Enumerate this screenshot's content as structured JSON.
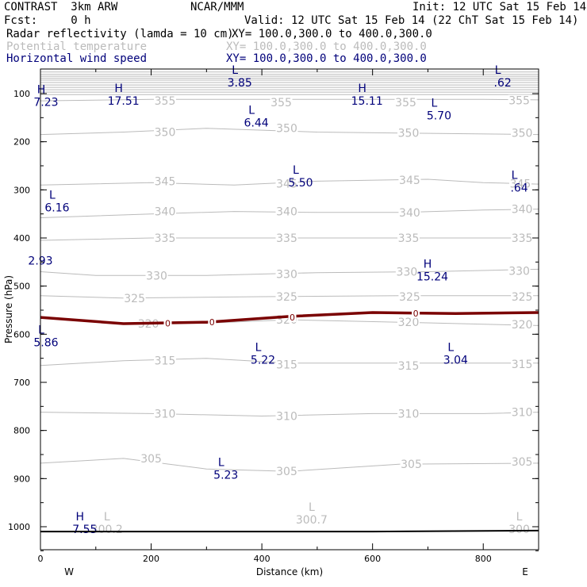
{
  "header": {
    "model": "CONTRAST  3km ARW",
    "center": "NCAR/MMM",
    "init": "Init: 12 UTC Sat 15 Feb 14",
    "fcst": "Fcst:     0 h",
    "valid": "Valid: 12 UTC Sat 15 Feb 14 (22 ChT Sat 15 Feb 14)",
    "fields": [
      {
        "name": "Radar reflectivity (lamda = 10 cm)",
        "xy": "XY= 100.0,300.0 to 400.0,300.0",
        "color": "#000000"
      },
      {
        "name": "Potential temperature",
        "xy": "XY= 100.0,300.0 to 400.0,300.0",
        "color": "#bbbbbb"
      },
      {
        "name": "Horizontal wind speed",
        "xy": "XY= 100.0,300.0 to 400.0,300.0",
        "color": "#00007a"
      }
    ]
  },
  "chart_data": {
    "type": "cross-section",
    "xlabel": "Distance (km)",
    "ylabel": "Pressure (hPa)",
    "xlim": [
      0,
      900
    ],
    "ylim": [
      1050,
      50
    ],
    "x_ticks": [
      0,
      200,
      400,
      600,
      800
    ],
    "y_ticks": [
      100,
      200,
      300,
      400,
      500,
      600,
      700,
      800,
      900,
      1000
    ],
    "x_ends": {
      "left": "W",
      "right": "E"
    },
    "theta_contours": [
      {
        "value": 355,
        "points": [
          [
            0,
            115
          ],
          [
            200,
            112
          ],
          [
            400,
            112
          ],
          [
            600,
            112
          ],
          [
            800,
            112
          ],
          [
            900,
            113
          ]
        ],
        "labels": [
          [
            225,
            115,
            "355"
          ],
          [
            435,
            118,
            "355"
          ],
          [
            660,
            118,
            "355"
          ],
          [
            865,
            114,
            "355"
          ]
        ]
      },
      {
        "value": 350,
        "points": [
          [
            0,
            185
          ],
          [
            150,
            180
          ],
          [
            300,
            172
          ],
          [
            500,
            180
          ],
          [
            650,
            182
          ],
          [
            900,
            185
          ]
        ],
        "labels": [
          [
            225,
            180,
            "350"
          ],
          [
            445,
            172,
            "350"
          ],
          [
            665,
            182,
            "350"
          ],
          [
            870,
            182,
            "350"
          ]
        ]
      },
      {
        "value": 345,
        "points": [
          [
            0,
            290
          ],
          [
            200,
            285
          ],
          [
            350,
            290
          ],
          [
            500,
            282
          ],
          [
            700,
            278
          ],
          [
            800,
            285
          ],
          [
            900,
            288
          ]
        ],
        "labels": [
          [
            225,
            282,
            "345"
          ],
          [
            445,
            287,
            "345"
          ],
          [
            667,
            280,
            "345"
          ],
          [
            867,
            287,
            "345"
          ]
        ]
      },
      {
        "value": 340,
        "points": [
          [
            0,
            358
          ],
          [
            200,
            350
          ],
          [
            350,
            345
          ],
          [
            500,
            347
          ],
          [
            650,
            347
          ],
          [
            800,
            342
          ],
          [
            900,
            340
          ]
        ],
        "labels": [
          [
            225,
            345,
            "340"
          ],
          [
            445,
            345,
            "340"
          ],
          [
            667,
            347,
            "340"
          ],
          [
            870,
            340,
            "340"
          ]
        ]
      },
      {
        "value": 335,
        "points": [
          [
            0,
            405
          ],
          [
            200,
            400
          ],
          [
            400,
            400
          ],
          [
            600,
            400
          ],
          [
            800,
            400
          ],
          [
            900,
            400
          ]
        ],
        "labels": [
          [
            225,
            400,
            "335"
          ],
          [
            445,
            400,
            "335"
          ],
          [
            665,
            400,
            "335"
          ],
          [
            870,
            400,
            "335"
          ]
        ]
      },
      {
        "value": 330,
        "points": [
          [
            0,
            470
          ],
          [
            100,
            478
          ],
          [
            300,
            478
          ],
          [
            500,
            472
          ],
          [
            700,
            470
          ],
          [
            900,
            465
          ]
        ],
        "labels": [
          [
            210,
            478,
            "330"
          ],
          [
            445,
            475,
            "330"
          ],
          [
            662,
            470,
            "330"
          ],
          [
            865,
            468,
            "330"
          ]
        ]
      },
      {
        "value": 325,
        "points": [
          [
            0,
            520
          ],
          [
            150,
            525
          ],
          [
            400,
            522
          ],
          [
            650,
            520
          ],
          [
            900,
            520
          ]
        ],
        "labels": [
          [
            170,
            525,
            "325"
          ],
          [
            445,
            522,
            "325"
          ],
          [
            667,
            522,
            "325"
          ],
          [
            870,
            522,
            "325"
          ]
        ]
      },
      {
        "value": 320,
        "points": [
          [
            0,
            565
          ],
          [
            150,
            578
          ],
          [
            300,
            577
          ],
          [
            450,
            570
          ],
          [
            650,
            575
          ],
          [
            900,
            582
          ]
        ],
        "labels": [
          [
            195,
            578,
            "320"
          ],
          [
            445,
            570,
            "320"
          ],
          [
            665,
            575,
            "320"
          ],
          [
            870,
            580,
            "320"
          ]
        ]
      },
      {
        "value": 315,
        "points": [
          [
            0,
            665
          ],
          [
            150,
            655
          ],
          [
            300,
            650
          ],
          [
            450,
            660
          ],
          [
            650,
            660
          ],
          [
            900,
            660
          ]
        ],
        "labels": [
          [
            225,
            655,
            "315"
          ],
          [
            445,
            663,
            "315"
          ],
          [
            665,
            665,
            "315"
          ],
          [
            870,
            662,
            "315"
          ]
        ]
      },
      {
        "value": 310,
        "points": [
          [
            0,
            762
          ],
          [
            200,
            765
          ],
          [
            400,
            770
          ],
          [
            600,
            765
          ],
          [
            800,
            765
          ],
          [
            900,
            762
          ]
        ],
        "labels": [
          [
            225,
            765,
            "310"
          ],
          [
            445,
            770,
            "310"
          ],
          [
            665,
            765,
            "310"
          ],
          [
            870,
            762,
            "310"
          ]
        ]
      },
      {
        "value": 305,
        "points": [
          [
            0,
            868
          ],
          [
            150,
            858
          ],
          [
            300,
            880
          ],
          [
            450,
            885
          ],
          [
            650,
            870
          ],
          [
            900,
            868
          ]
        ],
        "labels": [
          [
            200,
            858,
            "305"
          ],
          [
            445,
            885,
            "305"
          ],
          [
            670,
            870,
            "305"
          ],
          [
            870,
            865,
            "305"
          ]
        ]
      }
    ],
    "top_band_lines": [
      55,
      60,
      64,
      68,
      72,
      77,
      82,
      87,
      92,
      97,
      102
    ],
    "freezing_line": [
      [
        0,
        565
      ],
      [
        150,
        578
      ],
      [
        300,
        575
      ],
      [
        450,
        563
      ],
      [
        600,
        555
      ],
      [
        750,
        557
      ],
      [
        900,
        555
      ]
    ],
    "zero_markers": [
      [
        230,
        577
      ],
      [
        310,
        575
      ],
      [
        455,
        565
      ],
      [
        678,
        557
      ]
    ],
    "zero_label": "0",
    "wind_labels": [
      {
        "letter": "L",
        "value": "3.85",
        "x": 360,
        "p": 72
      },
      {
        "letter": "L",
        "value": ".62",
        "x": 835,
        "p": 72
      },
      {
        "letter": "H",
        "value": "7.23",
        "x": 10,
        "p": 112
      },
      {
        "letter": "H",
        "value": "17.51",
        "x": 150,
        "p": 110
      },
      {
        "letter": "H",
        "value": "15.11",
        "x": 590,
        "p": 110
      },
      {
        "letter": "L",
        "value": "5.70",
        "x": 720,
        "p": 140
      },
      {
        "letter": "L",
        "value": "6.44",
        "x": 390,
        "p": 155
      },
      {
        "letter": "L",
        "value": "5.50",
        "x": 470,
        "p": 280
      },
      {
        "letter": "L",
        "value": ".64",
        "x": 865,
        "p": 290
      },
      {
        "letter": "L",
        "value": "6.16",
        "x": 30,
        "p": 332
      },
      {
        "letter": "",
        "value": "2.93",
        "x": 0,
        "p": 442
      },
      {
        "letter": "H",
        "value": "15.24",
        "x": 708,
        "p": 475
      },
      {
        "letter": "L",
        "value": "5.86",
        "x": 10,
        "p": 612
      },
      {
        "letter": "L",
        "value": "5.22",
        "x": 402,
        "p": 648
      },
      {
        "letter": "L",
        "value": "3.04",
        "x": 750,
        "p": 648
      },
      {
        "letter": "L",
        "value": "5.23",
        "x": 335,
        "p": 887
      },
      {
        "letter": "H",
        "value": "7.55",
        "x": 80,
        "p": 1000
      }
    ],
    "theta_min_labels": [
      {
        "letter": "L",
        "value": "300.2",
        "x": 120,
        "p": 1000
      },
      {
        "letter": "L",
        "value": "300.7",
        "x": 490,
        "p": 980
      },
      {
        "letter": "L",
        "value": "300",
        "x": 865,
        "p": 1000
      }
    ],
    "ground_line": [
      [
        0,
        1010
      ],
      [
        600,
        1010
      ],
      [
        900,
        1008
      ]
    ]
  },
  "colors": {
    "theta": "#bbbbbb",
    "wind": "#00007a",
    "freezing": "#7a0000",
    "axes": "#000000"
  }
}
